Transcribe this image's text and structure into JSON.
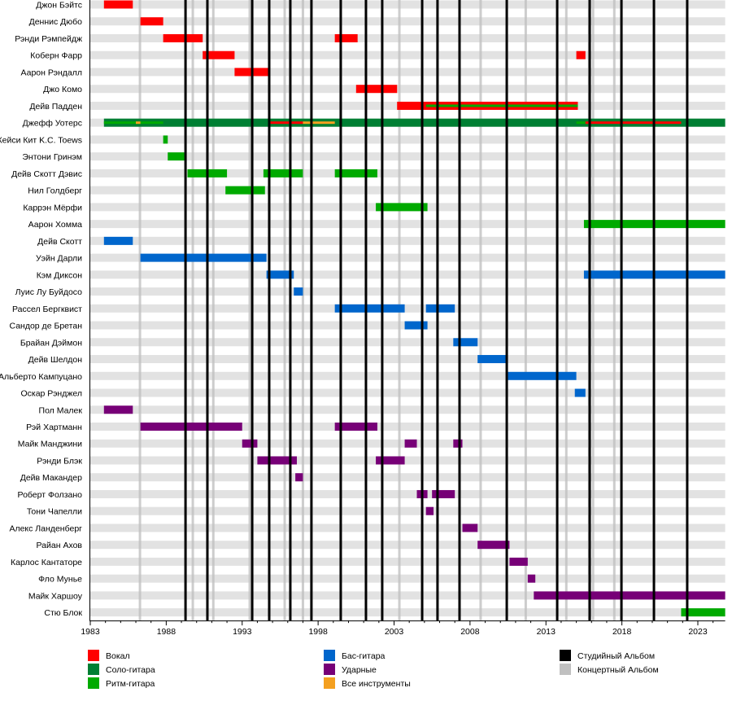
{
  "chart_data": {
    "type": "timeline",
    "xlim": [
      1983,
      2024.8
    ],
    "x_ticks": [
      "1983",
      "1988",
      "1993",
      "1998",
      "2003",
      "2008",
      "2013",
      "2018",
      "2023"
    ],
    "grid": false,
    "legend_placement": "bottom",
    "colors": {
      "vocals": "#ff0000",
      "lead": "#007f33",
      "rhythm": "#00aa00",
      "bass": "#0066cc",
      "drums": "#770077",
      "all": "#f4a020",
      "studio": "#000000",
      "live": "#c0c0c0"
    },
    "legend": [
      {
        "key": "vocals",
        "label": "Вокал"
      },
      {
        "key": "lead",
        "label": "Соло-гитара"
      },
      {
        "key": "rhythm",
        "label": "Ритм-гитара"
      },
      {
        "key": "bass",
        "label": "Бас-гитара"
      },
      {
        "key": "drums",
        "label": "Ударные"
      },
      {
        "key": "all",
        "label": "Все инструменты"
      },
      {
        "key": "studio",
        "label": "Студийный Альбом"
      },
      {
        "key": "live",
        "label": "Концертный Альбом"
      }
    ],
    "members": [
      {
        "name": "Джон Бэйтс",
        "bars": [
          {
            "role": "vocals",
            "from": 1983.9,
            "to": 1985.8
          }
        ]
      },
      {
        "name": "Деннис Дюбо",
        "bars": [
          {
            "role": "vocals",
            "from": 1986.3,
            "to": 1987.8
          }
        ]
      },
      {
        "name": "Рэнди Рэмпейдж",
        "bars": [
          {
            "role": "vocals",
            "from": 1987.8,
            "to": 1990.4
          },
          {
            "role": "vocals",
            "from": 1999.1,
            "to": 2000.6
          }
        ]
      },
      {
        "name": "Коберн Фарр",
        "bars": [
          {
            "role": "vocals",
            "from": 1990.4,
            "to": 1992.5
          },
          {
            "role": "vocals",
            "from": 2015.0,
            "to": 2015.6
          }
        ]
      },
      {
        "name": "Аарон Рэндалл",
        "bars": [
          {
            "role": "vocals",
            "from": 1992.5,
            "to": 1994.7
          }
        ]
      },
      {
        "name": "Джо Комо",
        "bars": [
          {
            "role": "vocals",
            "from": 2000.5,
            "to": 2003.2
          }
        ]
      },
      {
        "name": "Дейв Падден",
        "bars": [
          {
            "role": "vocals",
            "from": 2003.2,
            "to": 2015.1
          },
          {
            "role": "rhythm",
            "from": 2005.1,
            "to": 2015.1,
            "inner": true
          }
        ]
      },
      {
        "name": "Джефф Уотерс",
        "bars": [
          {
            "role": "lead",
            "from": 1983.9,
            "to": 2024.8
          },
          {
            "role": "rhythm",
            "from": 1983.9,
            "to": 1987.8,
            "inner": true
          },
          {
            "role": "all",
            "from": 1986.0,
            "to": 1986.3,
            "inner": true
          },
          {
            "role": "vocals",
            "from": 1994.8,
            "to": 1997.0,
            "inner": true
          },
          {
            "role": "all",
            "from": 1997.0,
            "to": 1999.1,
            "inner": true
          },
          {
            "role": "rhythm",
            "from": 2015.0,
            "to": 2015.6,
            "inner": true
          },
          {
            "role": "vocals",
            "from": 2015.6,
            "to": 2021.9,
            "inner": true
          }
        ]
      },
      {
        "name": "Кейси Кит K.C. Toews",
        "bars": [
          {
            "role": "rhythm",
            "from": 1987.8,
            "to": 1988.1
          }
        ]
      },
      {
        "name": "Энтони Гринэм",
        "bars": [
          {
            "role": "rhythm",
            "from": 1988.1,
            "to": 1989.2
          }
        ]
      },
      {
        "name": "Дейв Скотт Дэвис",
        "bars": [
          {
            "role": "rhythm",
            "from": 1989.4,
            "to": 1992.0
          },
          {
            "role": "rhythm",
            "from": 1994.4,
            "to": 1997.0
          },
          {
            "role": "rhythm",
            "from": 1999.1,
            "to": 2001.9
          }
        ]
      },
      {
        "name": "Нил Голдберг",
        "bars": [
          {
            "role": "rhythm",
            "from": 1991.9,
            "to": 1994.5
          }
        ]
      },
      {
        "name": "Каррэн Мёрфи",
        "bars": [
          {
            "role": "rhythm",
            "from": 2001.8,
            "to": 2005.2
          }
        ]
      },
      {
        "name": "Аарон Хомма",
        "bars": [
          {
            "role": "rhythm",
            "from": 2015.5,
            "to": 2024.8
          }
        ]
      },
      {
        "name": "Дейв Скотт",
        "bars": [
          {
            "role": "bass",
            "from": 1983.9,
            "to": 1985.8
          }
        ]
      },
      {
        "name": "Уэйн Дарли",
        "bars": [
          {
            "role": "bass",
            "from": 1986.3,
            "to": 1994.6
          }
        ]
      },
      {
        "name": "Кэм Диксон",
        "bars": [
          {
            "role": "bass",
            "from": 1994.6,
            "to": 1996.4
          },
          {
            "role": "bass",
            "from": 2015.5,
            "to": 2024.8
          }
        ]
      },
      {
        "name": "Луис Лу Буйдосо",
        "bars": [
          {
            "role": "bass",
            "from": 1996.4,
            "to": 1997.0
          }
        ]
      },
      {
        "name": "Рассел Бергквист",
        "bars": [
          {
            "role": "bass",
            "from": 1999.1,
            "to": 2003.7
          },
          {
            "role": "bass",
            "from": 2005.1,
            "to": 2007.0
          }
        ]
      },
      {
        "name": "Сандор де Бретан",
        "bars": [
          {
            "role": "bass",
            "from": 2003.7,
            "to": 2005.2
          }
        ]
      },
      {
        "name": "Брайан Дэймон",
        "bars": [
          {
            "role": "bass",
            "from": 2006.9,
            "to": 2008.5
          }
        ]
      },
      {
        "name": "Дейв Шелдон",
        "bars": [
          {
            "role": "bass",
            "from": 2008.5,
            "to": 2010.4
          }
        ]
      },
      {
        "name": "Альберто Кампуцано",
        "bars": [
          {
            "role": "bass",
            "from": 2010.5,
            "to": 2015.0
          }
        ]
      },
      {
        "name": "Оскар Рэнджел",
        "bars": [
          {
            "role": "bass",
            "from": 2014.9,
            "to": 2015.6
          }
        ]
      },
      {
        "name": "Пол Малек",
        "bars": [
          {
            "role": "drums",
            "from": 1983.9,
            "to": 1985.8
          }
        ]
      },
      {
        "name": "Рэй Хартманн",
        "bars": [
          {
            "role": "drums",
            "from": 1986.3,
            "to": 1993.0
          },
          {
            "role": "drums",
            "from": 1999.1,
            "to": 2001.9
          }
        ]
      },
      {
        "name": "Майк Манджини",
        "bars": [
          {
            "role": "drums",
            "from": 1993.0,
            "to": 1994.0
          },
          {
            "role": "drums",
            "from": 2003.7,
            "to": 2004.5
          },
          {
            "role": "drums",
            "from": 2006.9,
            "to": 2007.5
          }
        ]
      },
      {
        "name": "Рэнди Блэк",
        "bars": [
          {
            "role": "drums",
            "from": 1994.0,
            "to": 1996.6
          },
          {
            "role": "drums",
            "from": 2001.8,
            "to": 2003.7
          }
        ]
      },
      {
        "name": "Дейв Макандер",
        "bars": [
          {
            "role": "drums",
            "from": 1996.5,
            "to": 1997.0
          }
        ]
      },
      {
        "name": "Роберт Фолзано",
        "bars": [
          {
            "role": "drums",
            "from": 2004.5,
            "to": 2005.2
          },
          {
            "role": "drums",
            "from": 2005.5,
            "to": 2007.0
          }
        ]
      },
      {
        "name": "Тони Чапелли",
        "bars": [
          {
            "role": "drums",
            "from": 2005.1,
            "to": 2005.6
          }
        ]
      },
      {
        "name": "Алекс Ланденберг",
        "bars": [
          {
            "role": "drums",
            "from": 2007.5,
            "to": 2008.5
          }
        ]
      },
      {
        "name": "Райан Ахов",
        "bars": [
          {
            "role": "drums",
            "from": 2008.5,
            "to": 2010.6
          }
        ]
      },
      {
        "name": "Карлос Кантаторе",
        "bars": [
          {
            "role": "drums",
            "from": 2010.6,
            "to": 2011.8
          }
        ]
      },
      {
        "name": "Фло Мунье",
        "bars": [
          {
            "role": "drums",
            "from": 2011.8,
            "to": 2012.3
          }
        ]
      },
      {
        "name": "Майк Харшоу",
        "bars": [
          {
            "role": "drums",
            "from": 2012.2,
            "to": 2024.8
          }
        ]
      },
      {
        "name": "Стю Блок",
        "bars": [
          {
            "role": "rhythm",
            "from": 2021.9,
            "to": 2024.8
          }
        ]
      }
    ],
    "studio_albums": [
      1989.27,
      1990.71,
      1993.66,
      1994.78,
      1996.17,
      1997.56,
      1999.49,
      2001.15,
      2002.22,
      2004.85,
      2005.86,
      2007.31,
      2010.42,
      2013.74,
      2015.88,
      2017.97,
      2020.11,
      2022.3
    ],
    "live_albums": [
      1986.27,
      1989.75,
      1991.1,
      1993.5,
      1995.8,
      1997.0,
      2003.35,
      2008.7,
      2011.67,
      2014.34,
      2015.84,
      2016.1,
      2017.5
    ]
  }
}
